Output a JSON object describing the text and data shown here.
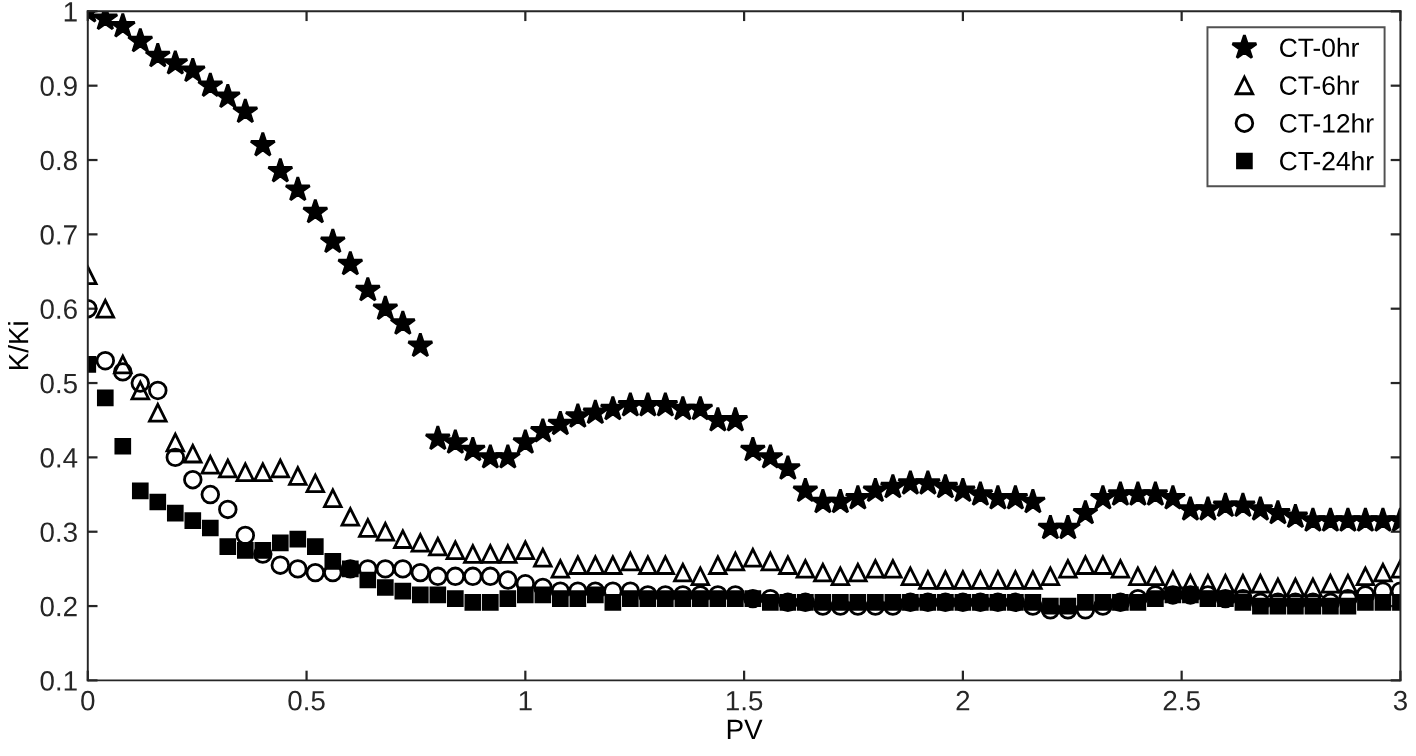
{
  "chart_data": {
    "type": "scatter",
    "xlabel": "PV",
    "ylabel": "K/Ki",
    "x": [
      0,
      0.04,
      0.08,
      0.12,
      0.16,
      0.2,
      0.24,
      0.28,
      0.32,
      0.36,
      0.4,
      0.44,
      0.48,
      0.52,
      0.56,
      0.6,
      0.64,
      0.68,
      0.72,
      0.76,
      0.8,
      0.84,
      0.88,
      0.92,
      0.96,
      1.0,
      1.04,
      1.08,
      1.12,
      1.16,
      1.2,
      1.24,
      1.28,
      1.32,
      1.36,
      1.4,
      1.44,
      1.48,
      1.52,
      1.56,
      1.6,
      1.64,
      1.68,
      1.72,
      1.76,
      1.8,
      1.84,
      1.88,
      1.92,
      1.96,
      2.0,
      2.04,
      2.08,
      2.12,
      2.16,
      2.2,
      2.24,
      2.28,
      2.32,
      2.36,
      2.4,
      2.44,
      2.48,
      2.52,
      2.56,
      2.6,
      2.64,
      2.68,
      2.72,
      2.76,
      2.8,
      2.84,
      2.88,
      2.92,
      2.96,
      3.0
    ],
    "series": [
      {
        "name": "CT-0hr",
        "color": "#000000",
        "marker": "star",
        "values": [
          1.0,
          0.99,
          0.98,
          0.96,
          0.94,
          0.93,
          0.92,
          0.9,
          0.885,
          0.865,
          0.82,
          0.785,
          0.76,
          0.73,
          0.69,
          0.66,
          0.625,
          0.6,
          0.58,
          0.55,
          0.425,
          0.42,
          0.41,
          0.4,
          0.4,
          0.42,
          0.435,
          0.445,
          0.455,
          0.46,
          0.465,
          0.47,
          0.47,
          0.47,
          0.465,
          0.465,
          0.45,
          0.45,
          0.41,
          0.4,
          0.385,
          0.355,
          0.34,
          0.34,
          0.345,
          0.355,
          0.36,
          0.365,
          0.365,
          0.36,
          0.355,
          0.35,
          0.345,
          0.345,
          0.34,
          0.305,
          0.305,
          0.325,
          0.345,
          0.35,
          0.35,
          0.35,
          0.345,
          0.33,
          0.33,
          0.335,
          0.335,
          0.33,
          0.325,
          0.32,
          0.315,
          0.315,
          0.315,
          0.315,
          0.315,
          0.315
        ]
      },
      {
        "name": "CT-6hr",
        "color": "#000000",
        "marker": "triangle",
        "values": [
          0.645,
          0.6,
          0.525,
          0.49,
          0.46,
          0.42,
          0.405,
          0.39,
          0.385,
          0.38,
          0.38,
          0.385,
          0.375,
          0.365,
          0.345,
          0.32,
          0.305,
          0.3,
          0.29,
          0.285,
          0.28,
          0.275,
          0.27,
          0.27,
          0.27,
          0.275,
          0.265,
          0.25,
          0.255,
          0.255,
          0.255,
          0.26,
          0.255,
          0.255,
          0.245,
          0.24,
          0.255,
          0.26,
          0.265,
          0.26,
          0.255,
          0.25,
          0.245,
          0.24,
          0.245,
          0.25,
          0.25,
          0.24,
          0.235,
          0.235,
          0.235,
          0.235,
          0.235,
          0.235,
          0.235,
          0.24,
          0.25,
          0.255,
          0.255,
          0.25,
          0.24,
          0.24,
          0.235,
          0.23,
          0.23,
          0.23,
          0.23,
          0.23,
          0.225,
          0.225,
          0.225,
          0.23,
          0.23,
          0.24,
          0.245,
          0.25
        ]
      },
      {
        "name": "CT-12hr",
        "color": "#000000",
        "marker": "circle",
        "values": [
          0.6,
          0.53,
          0.515,
          0.5,
          0.49,
          0.4,
          0.37,
          0.35,
          0.33,
          0.295,
          0.27,
          0.255,
          0.25,
          0.245,
          0.245,
          0.25,
          0.25,
          0.25,
          0.25,
          0.245,
          0.24,
          0.24,
          0.24,
          0.24,
          0.235,
          0.23,
          0.225,
          0.22,
          0.22,
          0.22,
          0.22,
          0.22,
          0.215,
          0.215,
          0.215,
          0.215,
          0.215,
          0.215,
          0.21,
          0.21,
          0.205,
          0.205,
          0.2,
          0.2,
          0.2,
          0.2,
          0.2,
          0.205,
          0.205,
          0.205,
          0.205,
          0.205,
          0.205,
          0.205,
          0.2,
          0.195,
          0.195,
          0.195,
          0.2,
          0.205,
          0.21,
          0.215,
          0.215,
          0.215,
          0.215,
          0.21,
          0.21,
          0.205,
          0.205,
          0.205,
          0.205,
          0.205,
          0.21,
          0.215,
          0.22,
          0.22
        ]
      },
      {
        "name": "CT-24hr",
        "color": "#000000",
        "marker": "square",
        "values": [
          0.525,
          0.48,
          0.415,
          0.355,
          0.34,
          0.325,
          0.315,
          0.305,
          0.28,
          0.275,
          0.275,
          0.285,
          0.29,
          0.28,
          0.26,
          0.25,
          0.235,
          0.225,
          0.22,
          0.215,
          0.215,
          0.21,
          0.205,
          0.205,
          0.21,
          0.215,
          0.215,
          0.21,
          0.21,
          0.215,
          0.205,
          0.21,
          0.21,
          0.21,
          0.21,
          0.21,
          0.21,
          0.21,
          0.21,
          0.205,
          0.205,
          0.205,
          0.205,
          0.205,
          0.205,
          0.205,
          0.205,
          0.205,
          0.205,
          0.205,
          0.205,
          0.205,
          0.205,
          0.205,
          0.205,
          0.2,
          0.2,
          0.205,
          0.205,
          0.205,
          0.205,
          0.21,
          0.215,
          0.215,
          0.21,
          0.21,
          0.205,
          0.2,
          0.2,
          0.2,
          0.2,
          0.2,
          0.2,
          0.205,
          0.205,
          0.205
        ]
      }
    ],
    "xlim": [
      0,
      3
    ],
    "xticks": [
      0,
      0.5,
      1,
      1.5,
      2,
      2.5,
      3
    ],
    "ylim": [
      0.1,
      1
    ],
    "yticks": [
      0.1,
      0.2,
      0.3,
      0.4,
      0.5,
      0.6,
      0.7,
      0.8,
      0.9,
      1
    ],
    "grid": false,
    "legend": "top right"
  }
}
